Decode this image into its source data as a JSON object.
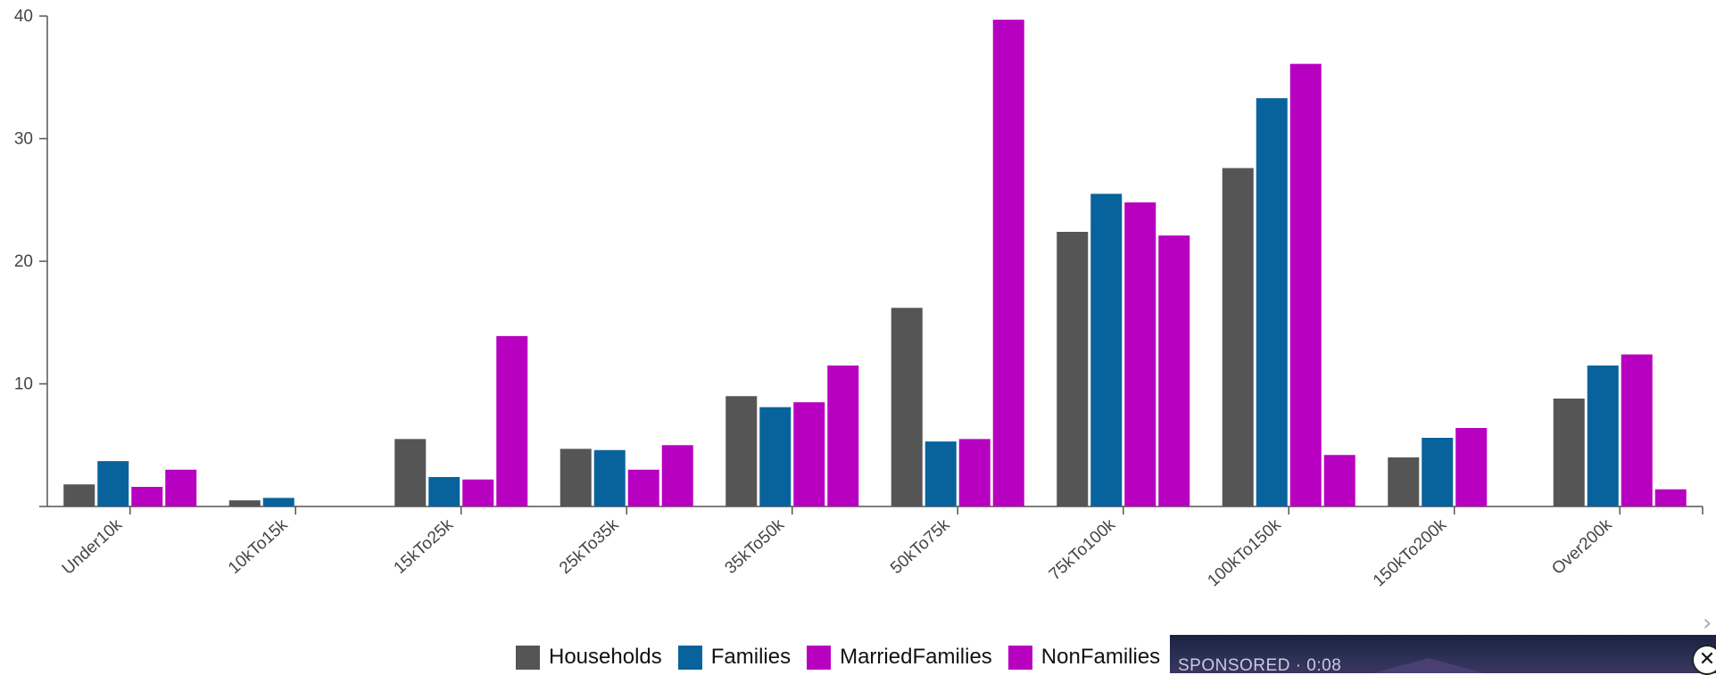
{
  "chart_data": {
    "type": "bar",
    "title": "",
    "xlabel": "",
    "ylabel": "",
    "categories": [
      "Under10k",
      "10kTo15k",
      "15kTo25k",
      "25kTo35k",
      "35kTo50k",
      "50kTo75k",
      "75kTo100k",
      "100kTo150k",
      "150kTo200k",
      "Over200k"
    ],
    "ylim": [
      0,
      40
    ],
    "yticks": [
      10,
      20,
      30,
      40
    ],
    "legend_position": "bottom",
    "series": [
      {
        "name": "Households",
        "color": "#555555",
        "values": [
          1.8,
          0.5,
          5.5,
          4.7,
          9.0,
          16.2,
          22.4,
          27.6,
          4.0,
          8.8
        ]
      },
      {
        "name": "Families",
        "color": "#08639c",
        "values": [
          3.7,
          0.7,
          2.4,
          4.6,
          8.1,
          5.3,
          25.5,
          33.3,
          5.6,
          11.5
        ]
      },
      {
        "name": "MarriedFamilies",
        "color": "#b800c0",
        "values": [
          1.6,
          0,
          2.2,
          3.0,
          8.5,
          5.5,
          24.8,
          36.1,
          6.4,
          12.4
        ]
      },
      {
        "name": "NonFamilies",
        "color": "#b800c0",
        "values": [
          3.0,
          0,
          13.9,
          5.0,
          11.5,
          39.7,
          22.1,
          4.2,
          0,
          1.4
        ]
      }
    ]
  },
  "ad": {
    "label": "SPONSORED · 0:08",
    "close_glyph": "✕",
    "corner_glyph": "›"
  }
}
